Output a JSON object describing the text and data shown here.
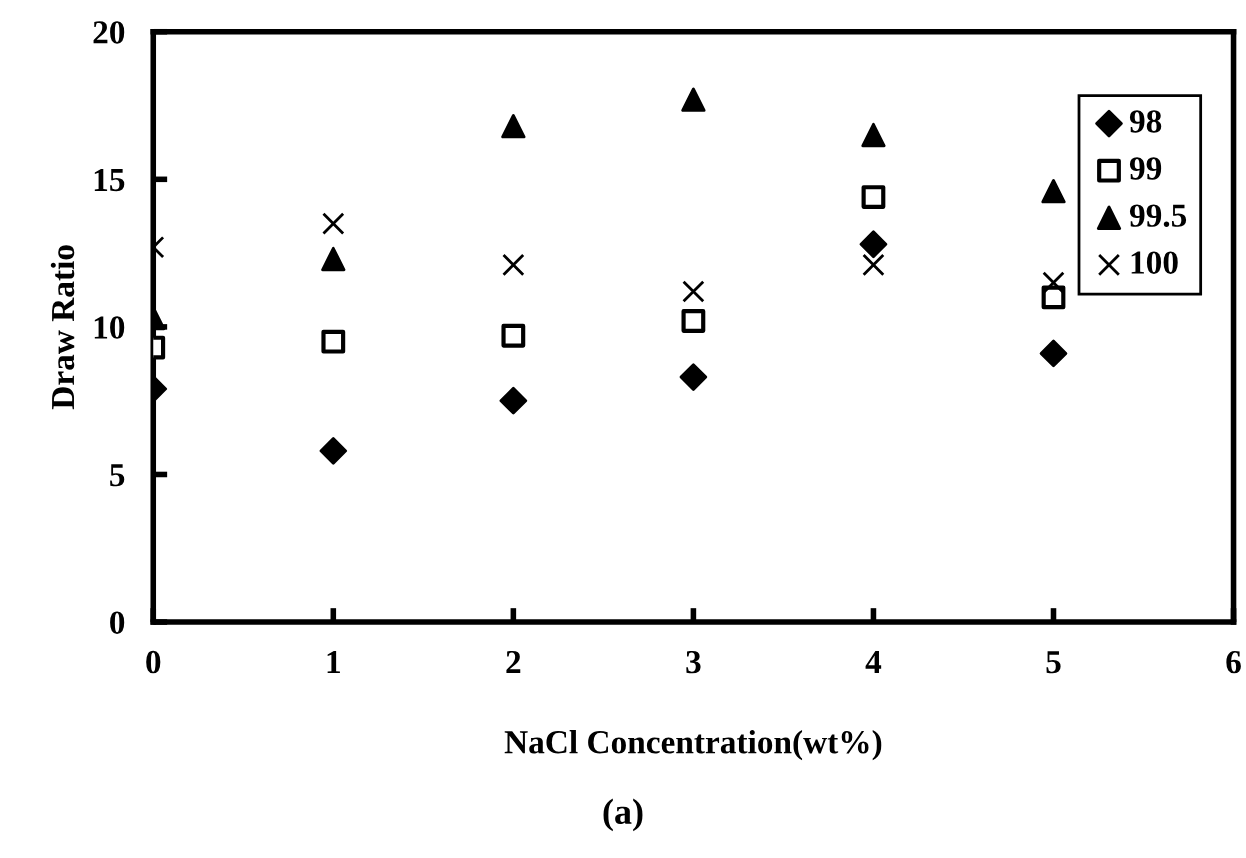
{
  "chart_data": {
    "type": "scatter",
    "xlabel": "NaCl Concentration(wt%)",
    "ylabel": "Draw Ratio",
    "x": [
      0,
      1,
      2,
      3,
      4,
      5
    ],
    "series": [
      {
        "name": "98",
        "color": "#000000",
        "marker": "diamond",
        "values": [
          7.9,
          5.8,
          7.5,
          8.3,
          12.8,
          9.1
        ]
      },
      {
        "name": "99",
        "color": "#000000",
        "marker": "square",
        "values": [
          9.3,
          9.5,
          9.7,
          10.2,
          14.4,
          11.0
        ]
      },
      {
        "name": "99.5",
        "color": "#000000",
        "marker": "triangle",
        "values": [
          10.3,
          12.3,
          16.8,
          17.7,
          16.5,
          14.6
        ]
      },
      {
        "name": "100",
        "color": "#000000",
        "marker": "cross",
        "values": [
          12.7,
          13.5,
          12.1,
          11.2,
          12.1,
          11.5
        ]
      }
    ],
    "xlim": [
      0,
      6
    ],
    "xticks": [
      0,
      1,
      2,
      3,
      4,
      5,
      6
    ],
    "ylim": [
      0,
      20
    ],
    "yticks": [
      0,
      5,
      10,
      15,
      20
    ],
    "grid": false,
    "legend": "top right",
    "annotations": [
      "(a)"
    ]
  }
}
